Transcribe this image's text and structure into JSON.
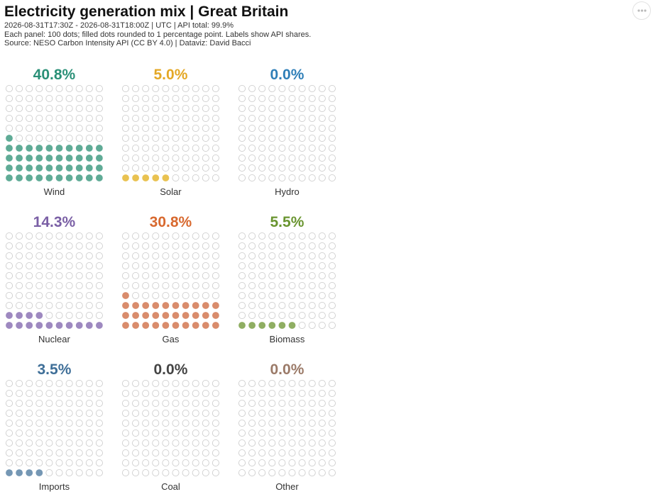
{
  "header": {
    "title": "Electricity generation mix | Great Britain",
    "subtitle_lines": [
      "2026-08-31T17:30Z - 2026-08-31T18:00Z | UTC | API total: 99.9%",
      "Each panel: 100 dots; filled dots rounded to 1 percentage point. Labels show API shares.",
      "Source: NESO Carbon Intensity API (CC BY 4.0) | Dataviz: David Bacci"
    ]
  },
  "toolbar": {
    "more_icon": "more-horizontal-icon"
  },
  "chart_data": {
    "type": "waffle",
    "dots_per_panel": 100,
    "grid": {
      "rows": 10,
      "cols": 10
    },
    "empty_dot_color": "#e9e9e9",
    "panels": [
      {
        "name": "Wind",
        "label": "40.8%",
        "value": 40.8,
        "filled_dots": 41,
        "label_color": "#2a9077",
        "dot_color": "#5fab96"
      },
      {
        "name": "Solar",
        "label": "5.0%",
        "value": 5.0,
        "filled_dots": 5,
        "label_color": "#e4a826",
        "dot_color": "#e9c251"
      },
      {
        "name": "Hydro",
        "label": "0.0%",
        "value": 0.0,
        "filled_dots": 0,
        "label_color": "#2f7fb8",
        "dot_color": "#5d9ccc"
      },
      {
        "name": "Nuclear",
        "label": "14.3%",
        "value": 14.3,
        "filled_dots": 14,
        "label_color": "#7a5fa5",
        "dot_color": "#9e89c0"
      },
      {
        "name": "Gas",
        "label": "30.8%",
        "value": 30.8,
        "filled_dots": 31,
        "label_color": "#d8692f",
        "dot_color": "#d98c6c"
      },
      {
        "name": "Biomass",
        "label": "5.5%",
        "value": 5.5,
        "filled_dots": 6,
        "label_color": "#6a9530",
        "dot_color": "#8fae62"
      },
      {
        "name": "Imports",
        "label": "3.5%",
        "value": 3.5,
        "filled_dots": 4,
        "label_color": "#3f6f98",
        "dot_color": "#7597b4"
      },
      {
        "name": "Coal",
        "label": "0.0%",
        "value": 0.0,
        "filled_dots": 0,
        "label_color": "#444444",
        "dot_color": "#666666"
      },
      {
        "name": "Other",
        "label": "0.0%",
        "value": 0.0,
        "filled_dots": 0,
        "label_color": "#9b7a68",
        "dot_color": "#b79a8a"
      }
    ]
  }
}
